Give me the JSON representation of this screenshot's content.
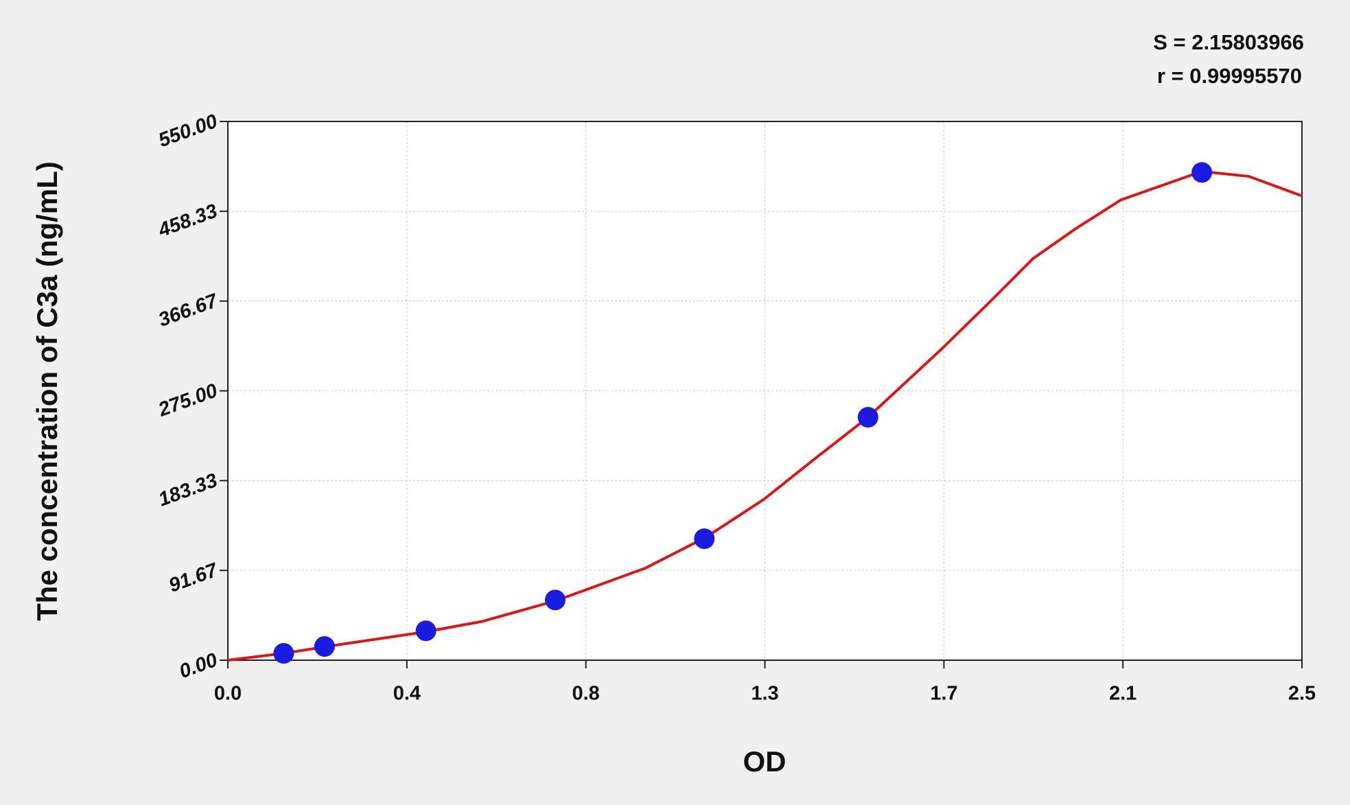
{
  "chart_data": {
    "type": "scatter",
    "x_label": "OD",
    "y_label": "The concentration of C3a (ng/mL)",
    "annotations": [
      "S = 2.15803966",
      "r = 0.99995570"
    ],
    "xlim": [
      0,
      2.5
    ],
    "xticks": [
      {
        "value": 0,
        "label": "0.0"
      },
      {
        "value": 0.4167,
        "label": "0.4"
      },
      {
        "value": 0.8333,
        "label": "0.8"
      },
      {
        "value": 1.25,
        "label": "1.3"
      },
      {
        "value": 1.6667,
        "label": "1.7"
      },
      {
        "value": 2.0833,
        "label": "2.1"
      },
      {
        "value": 2.5,
        "label": "2.5"
      }
    ],
    "ylim": [
      0,
      550
    ],
    "yticks": [
      {
        "value": 0,
        "label": "0.00"
      },
      {
        "value": 91.67,
        "label": "91.67"
      },
      {
        "value": 183.33,
        "label": "183.33"
      },
      {
        "value": 275,
        "label": "275.00"
      },
      {
        "value": 366.67,
        "label": "366.67"
      },
      {
        "value": 458.33,
        "label": "458.33"
      },
      {
        "value": 550,
        "label": "550.00"
      }
    ],
    "grid": true,
    "series": [
      {
        "style": "points",
        "color": "#1a1ae0",
        "x": [
          0.13,
          0.225,
          0.461,
          0.762,
          1.109,
          1.49,
          2.267
        ],
        "values": [
          7,
          14,
          30,
          61.5,
          124,
          248,
          498
        ]
      },
      {
        "style": "line",
        "color": "#e01414",
        "x": [
          0,
          0.13,
          0.271,
          0.461,
          0.591,
          0.762,
          0.972,
          1.113,
          1.247,
          1.373,
          1.49,
          1.662,
          1.774,
          1.874,
          1.975,
          2.079,
          2.267,
          2.376,
          2.5
        ],
        "values": [
          0,
          7,
          16.7,
          29,
          39.5,
          60.5,
          94,
          125.6,
          164,
          208,
          248,
          318,
          366,
          410,
          441,
          470,
          499,
          494,
          474
        ]
      }
    ]
  }
}
